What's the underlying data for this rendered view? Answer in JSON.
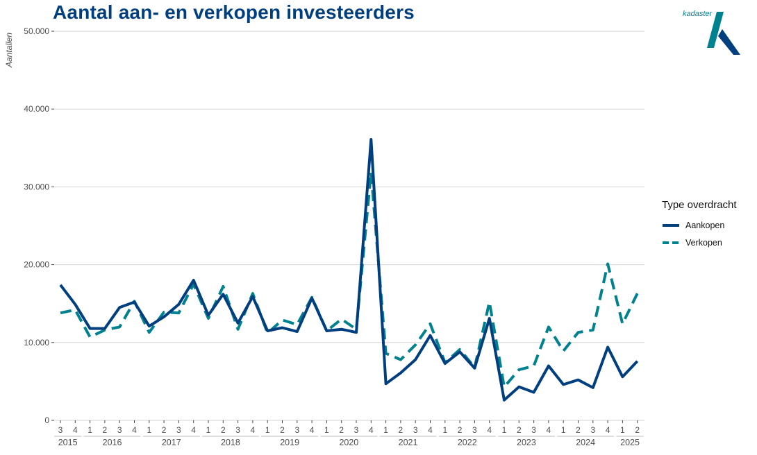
{
  "logo": {
    "text": "kadaster"
  },
  "chart_data": {
    "type": "line",
    "title": "Aantal aan- en verkopen investeerders",
    "ylabel": "Aantallen",
    "xlabel": "",
    "ylim": [
      0,
      50000
    ],
    "y_ticks": [
      0,
      10000,
      20000,
      30000,
      40000,
      50000
    ],
    "y_tick_labels": [
      "0",
      "10.000",
      "20.000",
      "30.000",
      "40.000",
      "50.000"
    ],
    "grid": true,
    "legend_title": "Type overdracht",
    "legend_position": "right",
    "x": [
      "2015-3",
      "2015-4",
      "2016-1",
      "2016-2",
      "2016-3",
      "2016-4",
      "2017-1",
      "2017-2",
      "2017-3",
      "2017-4",
      "2018-1",
      "2018-2",
      "2018-3",
      "2018-4",
      "2019-1",
      "2019-2",
      "2019-3",
      "2019-4",
      "2020-1",
      "2020-2",
      "2020-3",
      "2020-4",
      "2021-1",
      "2021-2",
      "2021-3",
      "2021-4",
      "2022-1",
      "2022-2",
      "2022-3",
      "2022-4",
      "2023-1",
      "2023-2",
      "2023-3",
      "2023-4",
      "2024-1",
      "2024-2",
      "2024-3",
      "2024-4",
      "2025-1",
      "2025-2"
    ],
    "quarter_labels": [
      "3",
      "4",
      "1",
      "2",
      "3",
      "4",
      "1",
      "2",
      "3",
      "4",
      "1",
      "2",
      "3",
      "4",
      "1",
      "2",
      "3",
      "4",
      "1",
      "2",
      "3",
      "4",
      "1",
      "2",
      "3",
      "4",
      "1",
      "2",
      "3",
      "4",
      "1",
      "2",
      "3",
      "4",
      "1",
      "2",
      "3",
      "4",
      "1",
      "2"
    ],
    "year_labels": [
      {
        "label": "2015",
        "first": 0,
        "last": 1
      },
      {
        "label": "2016",
        "first": 2,
        "last": 5
      },
      {
        "label": "2017",
        "first": 6,
        "last": 9
      },
      {
        "label": "2018",
        "first": 10,
        "last": 13
      },
      {
        "label": "2019",
        "first": 14,
        "last": 17
      },
      {
        "label": "2020",
        "first": 18,
        "last": 21
      },
      {
        "label": "2021",
        "first": 22,
        "last": 25
      },
      {
        "label": "2022",
        "first": 26,
        "last": 29
      },
      {
        "label": "2023",
        "first": 30,
        "last": 33
      },
      {
        "label": "2024",
        "first": 34,
        "last": 37
      },
      {
        "label": "2025",
        "first": 38,
        "last": 39
      }
    ],
    "series": [
      {
        "name": "Aankopen",
        "color": "#003f7f",
        "dash": "solid",
        "values": [
          17400,
          14900,
          11800,
          11800,
          14500,
          15200,
          12100,
          13300,
          14900,
          18000,
          13500,
          16200,
          12500,
          15900,
          11500,
          11900,
          11400,
          15700,
          11500,
          11700,
          11300,
          36100,
          4700,
          6100,
          7800,
          10900,
          7300,
          8800,
          6700,
          13100,
          2600,
          4300,
          3600,
          7000,
          4600,
          5200,
          4200,
          9400,
          5600,
          7600
        ]
      },
      {
        "name": "Verkopen",
        "color": "#00818f",
        "dash": "dashed",
        "values": [
          13800,
          14200,
          10700,
          11600,
          12000,
          15300,
          11300,
          13900,
          13800,
          17500,
          13100,
          17200,
          11700,
          16300,
          11200,
          12900,
          12300,
          15800,
          11500,
          13000,
          11700,
          31900,
          8600,
          7800,
          9700,
          12400,
          7400,
          9100,
          6800,
          15200,
          4300,
          6500,
          7000,
          12000,
          8900,
          11300,
          11600,
          20100,
          12400,
          16300
        ]
      }
    ]
  }
}
